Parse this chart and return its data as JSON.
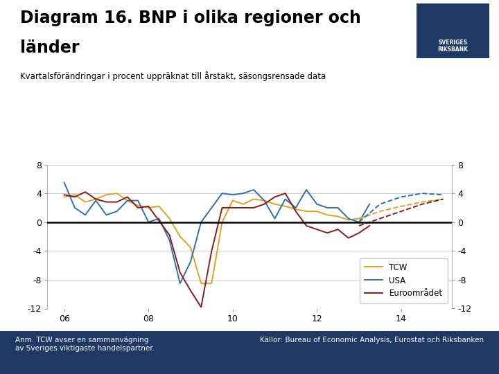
{
  "title_line1": "Diagram 16. BNP i olika regioner och",
  "title_line2": "länder",
  "subtitle": "Kvartalsförändringar i procent uppräknat till årstakt, säsongsrensade data",
  "footnote_left": "Anm. TCW avser en sammanvägning\nav Sveriges viktigaste handelspartner.",
  "footnote_right": "Källor: Bureau of Economic Analysis, Eurostat och Riksbanken",
  "background_color": "#ffffff",
  "footer_color": "#1f3864",
  "ylim": [
    -12,
    8
  ],
  "yticks": [
    -12,
    -8,
    -4,
    0,
    4,
    8
  ],
  "xticks": [
    2006,
    2008,
    2010,
    2012,
    2014
  ],
  "xlim": [
    2005.6,
    2015.2
  ],
  "legend_colors": [
    "#DAA520",
    "#3070B0",
    "#8B1A1A"
  ],
  "grid_color": "#cccccc",
  "tcw_solid_x": [
    2006.0,
    2006.25,
    2006.5,
    2006.75,
    2007.0,
    2007.25,
    2007.5,
    2007.75,
    2008.0,
    2008.25,
    2008.5,
    2008.75,
    2009.0,
    2009.25,
    2009.5,
    2009.75,
    2010.0,
    2010.25,
    2010.5,
    2010.75,
    2011.0,
    2011.25,
    2011.5,
    2011.75,
    2012.0,
    2012.25,
    2012.5,
    2012.75,
    2013.0,
    2013.25
  ],
  "tcw_solid_y": [
    3.5,
    3.8,
    2.8,
    3.2,
    3.8,
    4.0,
    3.0,
    2.3,
    2.0,
    2.2,
    0.5,
    -2.0,
    -3.5,
    -8.5,
    -8.5,
    0.0,
    3.0,
    2.5,
    3.2,
    3.0,
    2.5,
    2.2,
    1.8,
    1.5,
    1.5,
    1.0,
    0.8,
    0.3,
    0.5,
    1.0
  ],
  "tcw_dashed_x": [
    2013.0,
    2013.5,
    2014.0,
    2014.5,
    2015.0
  ],
  "tcw_dashed_y": [
    0.5,
    1.5,
    2.2,
    2.8,
    3.2
  ],
  "usa_solid_x": [
    2006.0,
    2006.25,
    2006.5,
    2006.75,
    2007.0,
    2007.25,
    2007.5,
    2007.75,
    2008.0,
    2008.25,
    2008.5,
    2008.75,
    2009.0,
    2009.25,
    2009.5,
    2009.75,
    2010.0,
    2010.25,
    2010.5,
    2010.75,
    2011.0,
    2011.25,
    2011.5,
    2011.75,
    2012.0,
    2012.25,
    2012.5,
    2012.75,
    2013.0,
    2013.25
  ],
  "usa_solid_y": [
    5.5,
    2.0,
    1.0,
    3.0,
    1.0,
    1.5,
    3.0,
    3.0,
    0.0,
    0.5,
    -2.5,
    -8.5,
    -5.5,
    0.0,
    2.0,
    4.0,
    3.8,
    4.0,
    4.5,
    3.0,
    0.5,
    3.2,
    2.0,
    4.5,
    2.5,
    2.0,
    2.0,
    0.5,
    0.0,
    2.5
  ],
  "usa_dashed_x": [
    2013.0,
    2013.5,
    2014.0,
    2014.5,
    2015.0
  ],
  "usa_dashed_y": [
    0.0,
    2.5,
    3.5,
    4.0,
    3.8
  ],
  "euro_solid_x": [
    2006.0,
    2006.25,
    2006.5,
    2006.75,
    2007.0,
    2007.25,
    2007.5,
    2007.75,
    2008.0,
    2008.25,
    2008.5,
    2008.75,
    2009.0,
    2009.25,
    2009.5,
    2009.75,
    2010.0,
    2010.25,
    2010.5,
    2010.75,
    2011.0,
    2011.25,
    2011.5,
    2011.75,
    2012.0,
    2012.25,
    2012.5,
    2012.75,
    2013.0,
    2013.25
  ],
  "euro_solid_y": [
    3.8,
    3.5,
    4.2,
    3.2,
    2.8,
    2.8,
    3.5,
    2.0,
    2.2,
    0.2,
    -1.8,
    -7.0,
    -9.5,
    -11.8,
    -4.0,
    2.0,
    2.0,
    2.0,
    2.0,
    2.5,
    3.5,
    4.0,
    1.5,
    -0.5,
    -1.0,
    -1.5,
    -1.0,
    -2.2,
    -1.5,
    -0.5
  ],
  "euro_dashed_x": [
    2013.0,
    2013.5,
    2014.0,
    2014.5,
    2015.0
  ],
  "euro_dashed_y": [
    -0.5,
    0.5,
    1.5,
    2.5,
    3.2
  ],
  "riksbank_logo_color": "#1f3864"
}
